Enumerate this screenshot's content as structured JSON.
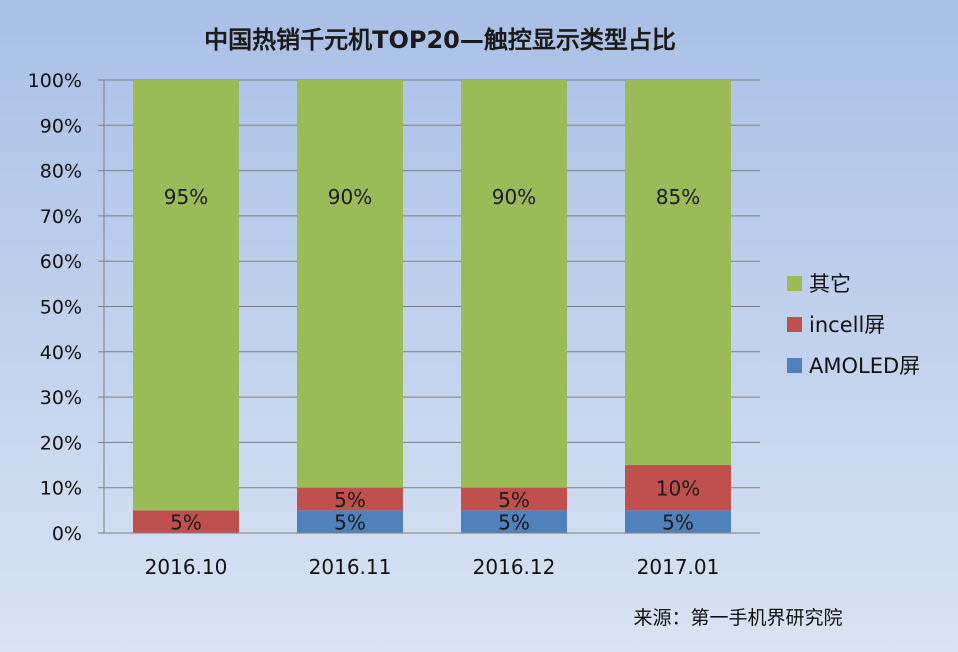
{
  "chart_data": {
    "type": "bar",
    "stacked": true,
    "percent": true,
    "title": "中国热销千元机TOP20—触控显示类型占比",
    "categories": [
      "2016.10",
      "2016.11",
      "2016.12",
      "2017.01"
    ],
    "series": [
      {
        "name": "AMOLED屏",
        "color": "#4f81bd",
        "values": [
          0,
          5,
          5,
          5
        ],
        "labels": [
          "",
          "5%",
          "5%",
          "5%"
        ]
      },
      {
        "name": "incell屏",
        "color": "#c0504d",
        "values": [
          5,
          5,
          5,
          10
        ],
        "labels": [
          "5%",
          "5%",
          "5%",
          "10%"
        ]
      },
      {
        "name": "其它",
        "color": "#9bbb59",
        "values": [
          95,
          90,
          90,
          85
        ],
        "labels": [
          "95%",
          "90%",
          "90%",
          "85%"
        ]
      }
    ],
    "yticks": [
      "0%",
      "10%",
      "20%",
      "30%",
      "40%",
      "50%",
      "60%",
      "70%",
      "80%",
      "90%",
      "100%"
    ],
    "ylim": [
      0,
      100
    ],
    "grid": true,
    "legend_position": "right",
    "source": "来源：第一手机界研究院"
  }
}
